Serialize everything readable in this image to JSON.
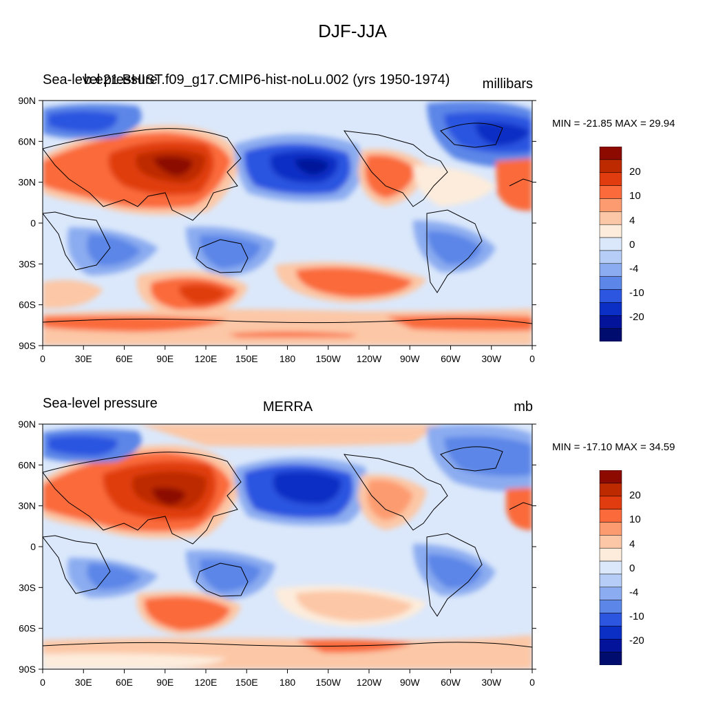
{
  "title": "DJF-JJA",
  "panels": [
    {
      "left_label": "Sea-level pressure",
      "center_label": "b.e21.BHIST.f09_g17.CMIP6-hist-noLu.002 (yrs 1950-1974)",
      "right_label": "millibars",
      "minmax": "MIN = -21.85 MAX =  29.94"
    },
    {
      "left_label": "Sea-level pressure",
      "center_label": "MERRA",
      "right_label": "mb",
      "minmax": "MIN = -17.10 MAX =  34.59"
    }
  ],
  "lon_ticks": [
    "0",
    "30E",
    "60E",
    "90E",
    "120E",
    "150E",
    "180",
    "150W",
    "120W",
    "90W",
    "60W",
    "30W",
    "0"
  ],
  "lat_ticks": [
    "90N",
    "60N",
    "30N",
    "0",
    "30S",
    "60S",
    "90S"
  ],
  "colorbar": {
    "labels": [
      "20",
      "10",
      "4",
      "0",
      "-4",
      "-10",
      "-20"
    ],
    "colors": [
      "#8c0a00",
      "#bd2a00",
      "#e03c0f",
      "#fa6a3a",
      "#fd9b70",
      "#fcc7a6",
      "#fdecdb",
      "#dbe8fb",
      "#b6cdf7",
      "#8bacf0",
      "#5c86e7",
      "#2c55e0",
      "#0b2fc4",
      "#03149a",
      "#000d6e"
    ]
  }
}
